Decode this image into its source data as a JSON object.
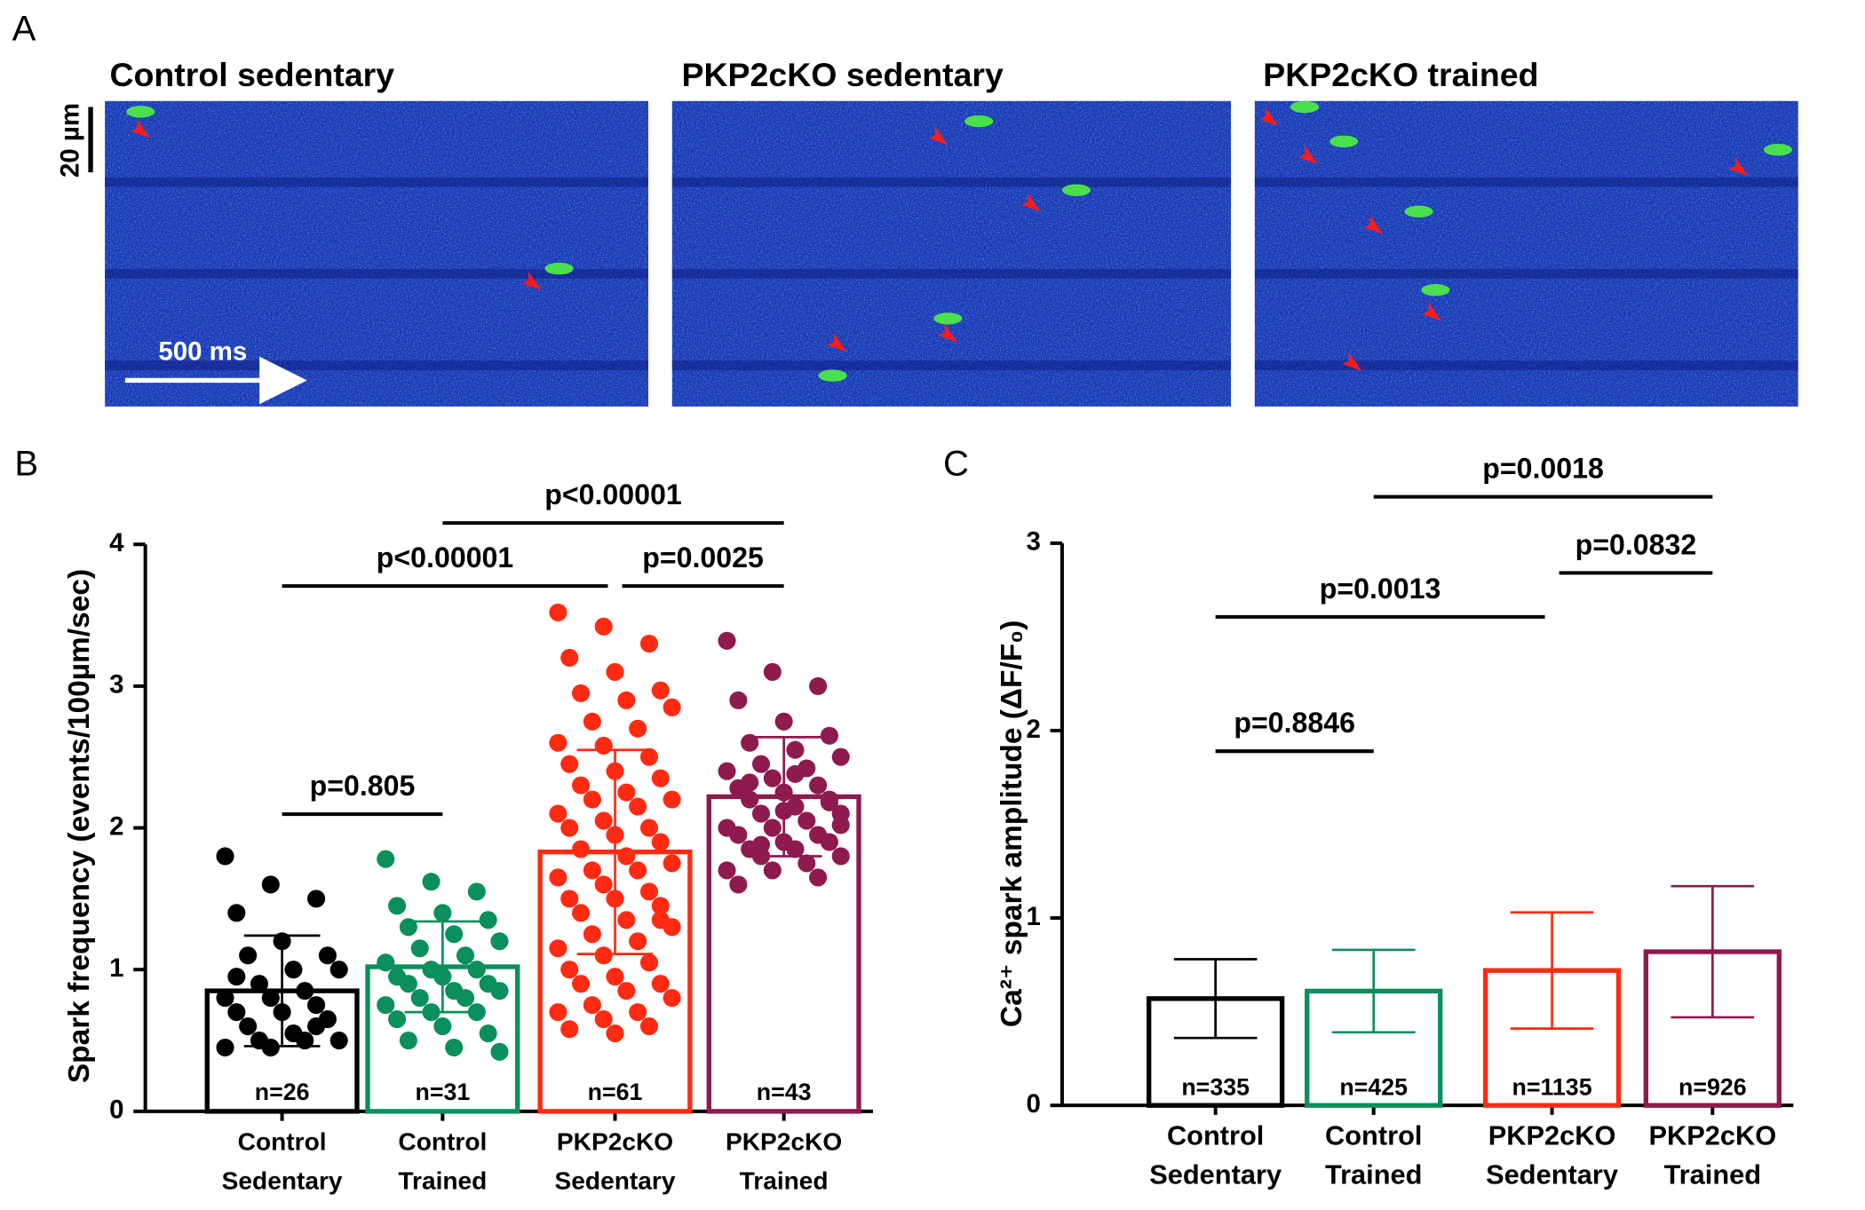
{
  "panel_labels": [
    "A",
    "B",
    "C"
  ],
  "panel_a": {
    "titles": [
      "Control sedentary",
      "PKP2cKO sedentary",
      "PKP2cKO trained"
    ],
    "scale_y": "20 µm",
    "scale_x": "500 ms"
  },
  "chart_data": [
    {
      "type": "bar",
      "y_label": "Spark frequency (events/100µm/sec)",
      "categories": [
        [
          "Control",
          "Sedentary"
        ],
        [
          "Control",
          "Trained"
        ],
        [
          "PKP2cKO",
          "Sedentary"
        ],
        [
          "PKP2cKO",
          "Trained"
        ]
      ],
      "values": [
        0.85,
        1.02,
        1.83,
        2.22
      ],
      "errors": [
        0.39,
        0.32,
        0.72,
        0.42
      ],
      "colors": [
        "#000000",
        "#0b8f5b",
        "#ff2a12",
        "#8e1a4e"
      ],
      "n_labels": [
        "n=26",
        "n=31",
        "n=61",
        "n=43"
      ],
      "points": [
        [
          1.8,
          1.6,
          1.5,
          1.4,
          1.2,
          1.1,
          1.1,
          1.0,
          1.0,
          0.9,
          0.85,
          0.8,
          0.8,
          0.75,
          0.7,
          0.7,
          0.65,
          0.6,
          0.55,
          0.5,
          0.5,
          0.5,
          0.45,
          0.45,
          0.6,
          0.95
        ],
        [
          1.78,
          1.62,
          1.55,
          1.45,
          1.4,
          1.35,
          1.3,
          1.25,
          1.2,
          1.15,
          1.1,
          1.05,
          1.0,
          1.0,
          0.95,
          0.95,
          0.9,
          0.9,
          0.85,
          0.85,
          0.8,
          0.8,
          0.75,
          0.7,
          0.7,
          0.65,
          0.6,
          0.55,
          0.5,
          0.45,
          0.42
        ],
        [
          3.52,
          3.42,
          3.3,
          3.2,
          3.1,
          2.97,
          2.95,
          2.9,
          2.85,
          2.75,
          2.7,
          2.6,
          2.58,
          2.5,
          2.45,
          2.4,
          2.35,
          2.3,
          2.25,
          2.2,
          2.2,
          2.15,
          2.1,
          2.05,
          2.0,
          2.0,
          1.95,
          1.9,
          1.85,
          1.8,
          1.75,
          1.7,
          1.7,
          1.65,
          1.6,
          1.55,
          1.5,
          1.5,
          1.45,
          1.4,
          1.35,
          1.3,
          1.25,
          1.2,
          1.15,
          1.1,
          1.05,
          1.0,
          0.95,
          0.9,
          0.9,
          0.85,
          0.8,
          0.75,
          0.7,
          0.7,
          0.65,
          0.6,
          0.58,
          0.55,
          1.35
        ],
        [
          3.32,
          3.1,
          3.0,
          2.9,
          2.75,
          2.65,
          2.6,
          2.55,
          2.5,
          2.45,
          2.42,
          2.4,
          2.35,
          2.3,
          2.28,
          2.25,
          2.2,
          2.2,
          2.15,
          2.1,
          2.1,
          2.05,
          2.0,
          2.0,
          1.95,
          1.95,
          1.9,
          1.9,
          1.85,
          1.85,
          1.8,
          1.8,
          1.75,
          1.7,
          1.7,
          1.65,
          1.6,
          2.12,
          2.18,
          2.32,
          2.38,
          2.02,
          1.88
        ]
      ],
      "comparisons": [
        {
          "label": "p=0.805",
          "from": 0,
          "to": 1
        },
        {
          "label": "p<0.00001",
          "from": 0,
          "to": 2
        },
        {
          "label": "p=0.0025",
          "from": 2,
          "to": 3
        },
        {
          "label": "p<0.00001",
          "from": 1,
          "to": 3
        }
      ],
      "ylim": [
        0,
        4
      ],
      "yticks": [
        0,
        1,
        2,
        3,
        4
      ]
    },
    {
      "type": "bar",
      "y_label": "Ca²⁺ spark amplitude (ΔF/F₀)",
      "categories": [
        [
          "Control",
          "Sedentary"
        ],
        [
          "Control",
          "Trained"
        ],
        [
          "PKP2cKO",
          "Sedentary"
        ],
        [
          "PKP2cKO",
          "Trained"
        ]
      ],
      "values": [
        0.57,
        0.61,
        0.72,
        0.82
      ],
      "errors": [
        0.21,
        0.22,
        0.31,
        0.35
      ],
      "colors": [
        "#000000",
        "#0b8f5b",
        "#ff2a12",
        "#8e1a4e"
      ],
      "n_labels": [
        "n=335",
        "n=425",
        "n=1135",
        "n=926"
      ],
      "comparisons": [
        {
          "label": "p=0.8846",
          "from": 0,
          "to": 1
        },
        {
          "label": "p=0.0013",
          "from": 0,
          "to": 2
        },
        {
          "label": "p=0.0832",
          "from": 2,
          "to": 3
        },
        {
          "label": "p=0.0018",
          "from": 1,
          "to": 3
        }
      ],
      "ylim": [
        0,
        3
      ],
      "yticks": [
        0,
        1,
        2,
        3
      ]
    }
  ]
}
